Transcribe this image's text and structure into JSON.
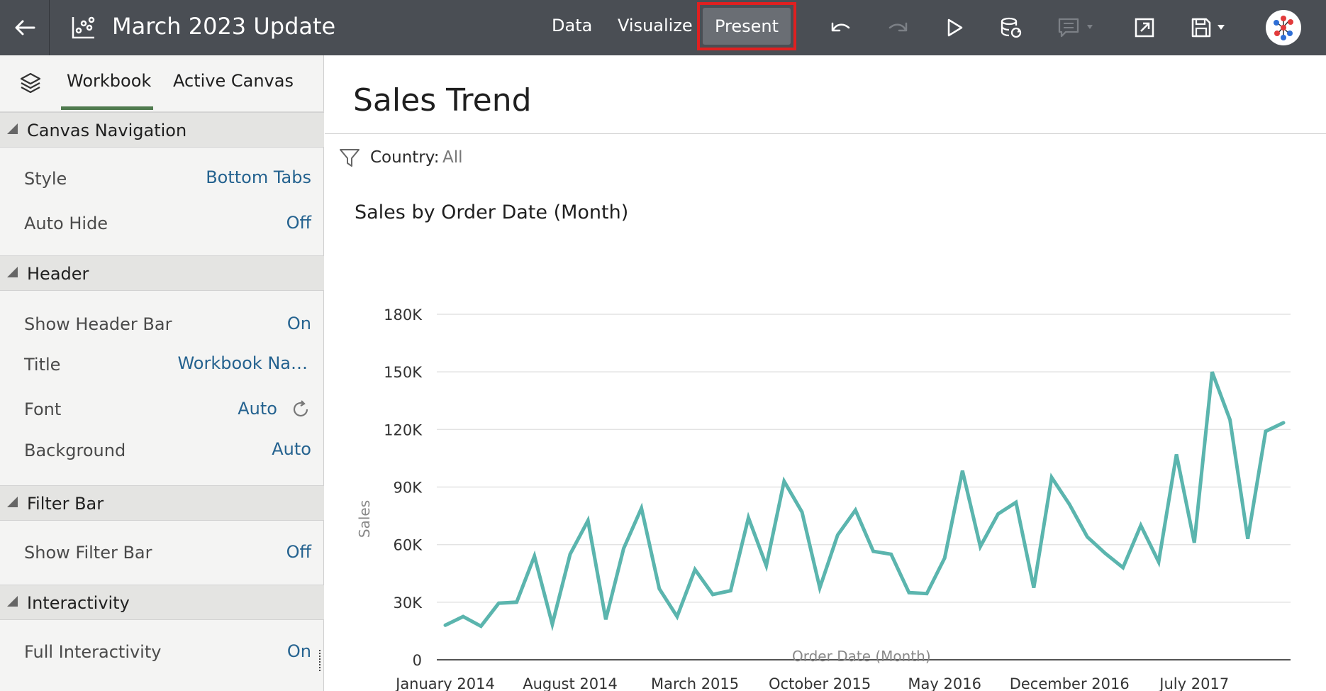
{
  "header": {
    "title": "March 2023 Update",
    "nav": {
      "data": "Data",
      "visualize": "Visualize",
      "present": "Present"
    },
    "icons": [
      "back-arrow-icon",
      "workbook-icon",
      "undo-icon",
      "redo-icon",
      "play-icon",
      "refresh-data-icon",
      "comment-icon",
      "export-icon",
      "save-icon",
      "user-avatar-icon"
    ]
  },
  "panel": {
    "tabs": {
      "workbook": "Workbook",
      "active_canvas": "Active Canvas"
    },
    "sections": {
      "canvas_navigation": {
        "label": "Canvas Navigation",
        "style_label": "Style",
        "style_value": "Bottom Tabs",
        "auto_hide_label": "Auto Hide",
        "auto_hide_value": "Off"
      },
      "header": {
        "label": "Header",
        "show_header_bar_label": "Show Header Bar",
        "show_header_bar_value": "On",
        "title_label": "Title",
        "title_value": "Workbook Na…",
        "font_label": "Font",
        "font_value": "Auto",
        "background_label": "Background",
        "background_value": "Auto"
      },
      "filter_bar": {
        "label": "Filter Bar",
        "show_filter_bar_label": "Show Filter Bar",
        "show_filter_bar_value": "Off"
      },
      "interactivity": {
        "label": "Interactivity",
        "full_interactivity_label": "Full Interactivity",
        "full_interactivity_value": "On"
      }
    }
  },
  "canvas": {
    "title": "Sales Trend",
    "filter": {
      "key": "Country:",
      "value": "All"
    }
  },
  "colors": {
    "topbar": "#4a4e54",
    "accent_underline": "#4f7a4e",
    "link": "#24628f",
    "line": "#5bb5ae",
    "highlight": "#e02020"
  },
  "chart_data": {
    "type": "line",
    "title": "Sales by Order Date (Month)",
    "xlabel": "Order Date (Month)",
    "ylabel": "Sales",
    "ylim": [
      0,
      180000
    ],
    "yticks": [
      "0",
      "30K",
      "60K",
      "90K",
      "120K",
      "150K",
      "180K"
    ],
    "xtick_labels": [
      "January 2014",
      "August 2014",
      "March 2015",
      "October 2015",
      "May 2016",
      "December 2016",
      "July 2017"
    ],
    "grid": true,
    "legend": "none",
    "x_start": "January 2014",
    "x_end": "December 2017",
    "values": [
      18000,
      22500,
      17500,
      29500,
      30000,
      54000,
      18500,
      55000,
      72500,
      21000,
      58000,
      79000,
      37000,
      22500,
      47000,
      34000,
      36000,
      74000,
      49000,
      93000,
      77000,
      37500,
      65000,
      78000,
      56500,
      55000,
      35000,
      34500,
      53000,
      98500,
      59000,
      76000,
      82000,
      37500,
      95000,
      81000,
      64000,
      55500,
      48000,
      70000,
      51000,
      107000,
      61000,
      150000,
      125000,
      63000,
      119000,
      123500
    ]
  }
}
